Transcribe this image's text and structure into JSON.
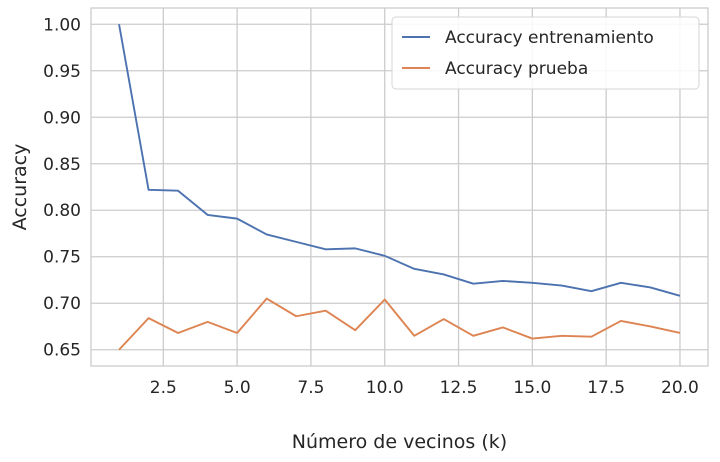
{
  "chart_data": {
    "type": "line",
    "xlabel": "Número de vecinos (k)",
    "ylabel": "Accuracy",
    "x": [
      1,
      2,
      3,
      4,
      5,
      6,
      7,
      8,
      9,
      10,
      11,
      12,
      13,
      14,
      15,
      16,
      17,
      18,
      19,
      20
    ],
    "series": [
      {
        "name": "Accuracy entrenamiento",
        "color": "#4c72b0",
        "values": [
          1.0,
          0.822,
          0.821,
          0.795,
          0.791,
          0.774,
          0.766,
          0.758,
          0.759,
          0.751,
          0.737,
          0.731,
          0.721,
          0.724,
          0.722,
          0.719,
          0.713,
          0.722,
          0.717,
          0.708
        ]
      },
      {
        "name": "Accuracy prueba",
        "color": "#dd8452",
        "values": [
          0.65,
          0.684,
          0.668,
          0.68,
          0.668,
          0.705,
          0.686,
          0.692,
          0.671,
          0.704,
          0.665,
          0.683,
          0.665,
          0.674,
          0.662,
          0.665,
          0.664,
          0.681,
          0.675,
          0.668
        ]
      }
    ],
    "xlim": [
      0.05,
      20.95
    ],
    "ylim": [
      0.6325,
      1.0175
    ],
    "xticks": [
      2.5,
      5.0,
      7.5,
      10.0,
      12.5,
      15.0,
      17.5,
      20.0
    ],
    "xtick_labels": [
      "2.5",
      "5.0",
      "7.5",
      "10.0",
      "12.5",
      "15.0",
      "17.5",
      "20.0"
    ],
    "yticks": [
      0.65,
      0.7,
      0.75,
      0.8,
      0.85,
      0.9,
      0.95,
      1.0
    ],
    "ytick_labels": [
      "0.65",
      "0.70",
      "0.75",
      "0.80",
      "0.85",
      "0.90",
      "0.95",
      "1.00"
    ],
    "grid": true,
    "legend_position": "top-right",
    "grid_color": "#cccccc",
    "spine_color": "#cccccc"
  }
}
